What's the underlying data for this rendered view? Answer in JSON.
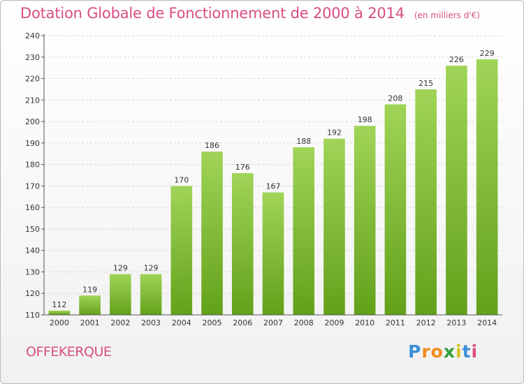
{
  "title": "Dotation Globale de Fonctionnement de 2000 à 2014",
  "unit": "(en milliers d'€)",
  "commune": "OFFEKERQUE",
  "brand": {
    "letters": [
      "P",
      "r",
      "o",
      "x",
      "i",
      "t",
      "i"
    ],
    "colors": [
      "#3a8fd8",
      "#f08a1c",
      "#f08a1c",
      "#2f9e3a",
      "#d2c21a",
      "#3a8fd8",
      "#d94d84"
    ]
  },
  "colors": {
    "accent": "#d94d84",
    "bar_light": "#a0d458",
    "bar_dark": "#63a11a"
  },
  "chart_data": {
    "type": "bar",
    "categories": [
      "2000",
      "2001",
      "2002",
      "2003",
      "2004",
      "2005",
      "2006",
      "2007",
      "2008",
      "2009",
      "2010",
      "2011",
      "2012",
      "2013",
      "2014"
    ],
    "values": [
      112,
      119,
      129,
      129,
      170,
      186,
      176,
      167,
      188,
      192,
      198,
      208,
      215,
      226,
      229
    ],
    "ylim": [
      110,
      240
    ],
    "yticks": [
      110,
      120,
      130,
      140,
      150,
      160,
      170,
      180,
      190,
      200,
      210,
      220,
      230,
      240
    ],
    "grid": true
  }
}
